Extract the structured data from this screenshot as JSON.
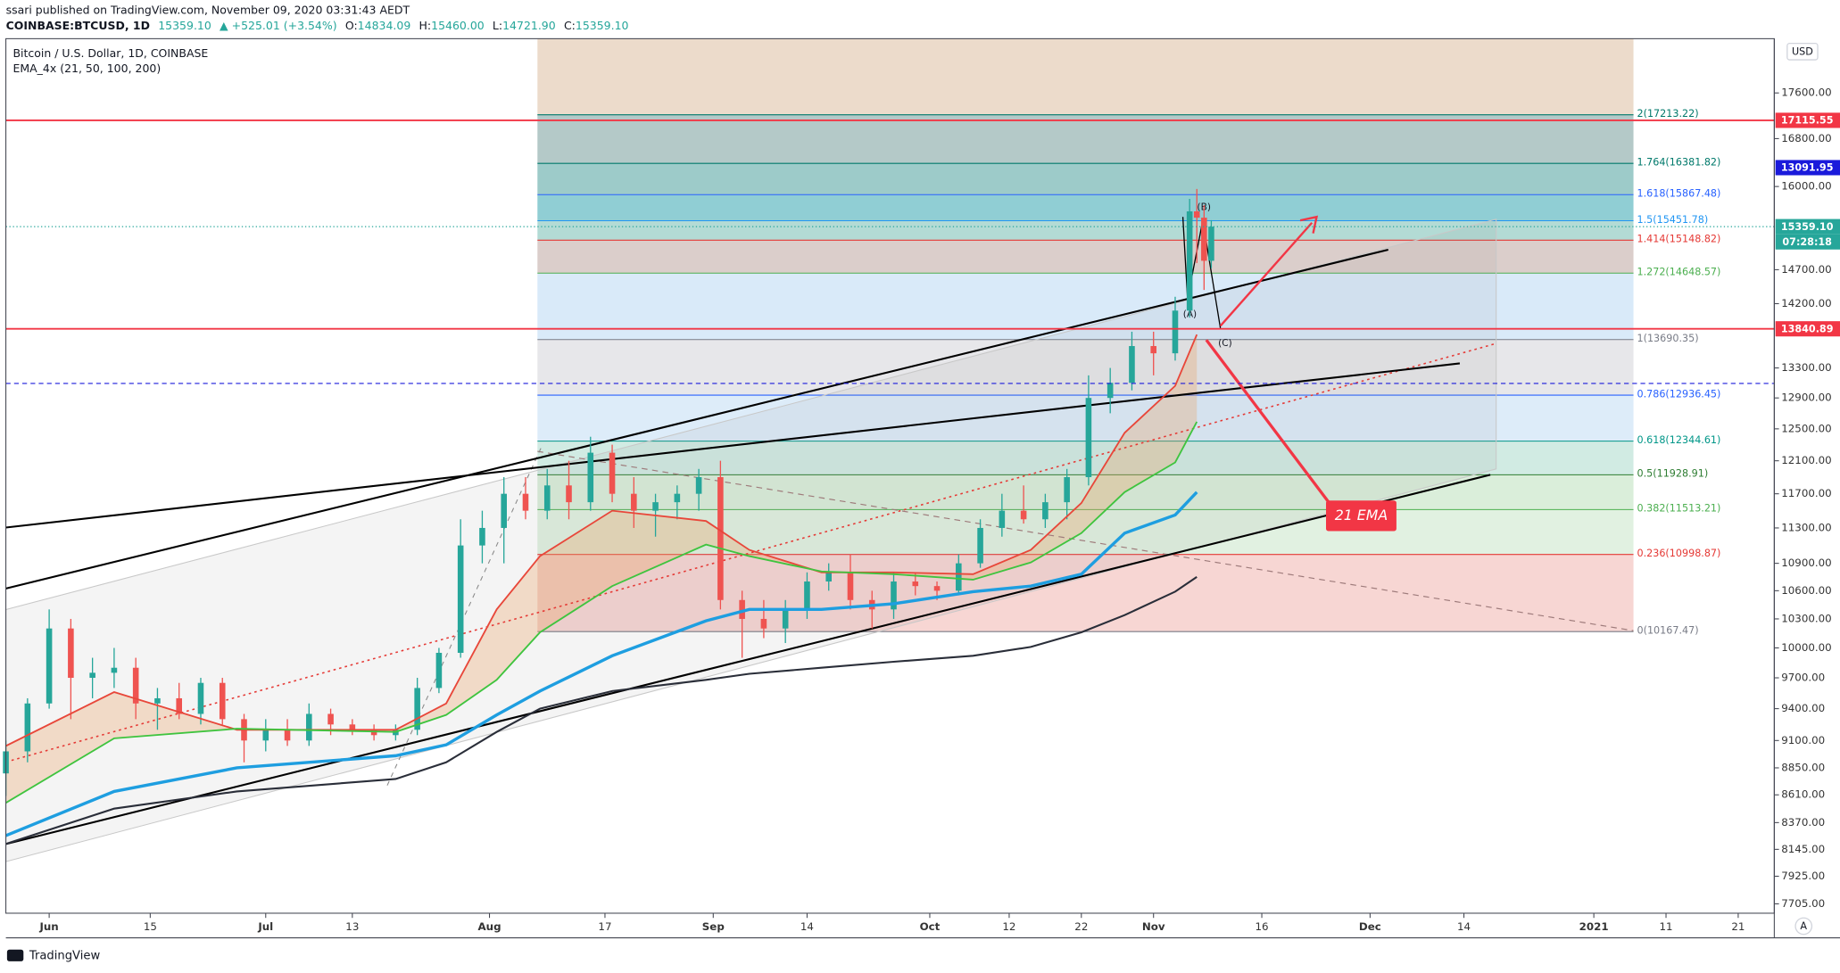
{
  "header": {
    "published": "ssari published on TradingView.com, November 09, 2020 03:31:43 AEDT",
    "symbol": "COINBASE:BTCUSD, 1D",
    "price": "15359.10",
    "change": "▲ +525.01 (+3.54%)",
    "ohlc": [
      {
        "key": "O:",
        "value": "14834.09"
      },
      {
        "key": "H:",
        "value": "15460.00"
      },
      {
        "key": "L:",
        "value": "14721.90"
      },
      {
        "key": "C:",
        "value": "15359.10"
      }
    ]
  },
  "legend": {
    "title": "Bitcoin / U.S. Dollar, 1D, COINBASE",
    "indicator": "EMA_4x (21, 50, 100, 200)"
  },
  "buttons": {
    "currency": "USD",
    "auto": "A"
  },
  "footer": "TradingView",
  "chart_data": {
    "type": "candlestick",
    "log_scale": true,
    "grid": false,
    "up_color": "#26a69a",
    "down_color": "#ef5350",
    "xlim": [
      -6,
      239
    ],
    "ylim": [
      7632,
      18600
    ],
    "xticks": [
      {
        "value": 0,
        "label": "Jun"
      },
      {
        "value": 14,
        "label": "15"
      },
      {
        "value": 30,
        "label": "Jul"
      },
      {
        "value": 42,
        "label": "13"
      },
      {
        "value": 61,
        "label": "Aug"
      },
      {
        "value": 77,
        "label": "17"
      },
      {
        "value": 92,
        "label": "Sep"
      },
      {
        "value": 105,
        "label": "14"
      },
      {
        "value": 122,
        "label": "Oct"
      },
      {
        "value": 133,
        "label": "12"
      },
      {
        "value": 143,
        "label": "22"
      },
      {
        "value": 153,
        "label": "Nov"
      },
      {
        "value": 168,
        "label": "16"
      },
      {
        "value": 183,
        "label": "Dec"
      },
      {
        "value": 196,
        "label": "14"
      },
      {
        "value": 214,
        "label": "2021"
      },
      {
        "value": 224,
        "label": "11"
      },
      {
        "value": 234,
        "label": "21"
      }
    ],
    "yticks": [
      {
        "value": 7705,
        "label": "7705.00"
      },
      {
        "value": 7925,
        "label": "7925.00"
      },
      {
        "value": 8145,
        "label": "8145.00"
      },
      {
        "value": 8370,
        "label": "8370.00"
      },
      {
        "value": 8610,
        "label": "8610.00"
      },
      {
        "value": 8850,
        "label": "8850.00"
      },
      {
        "value": 9100,
        "label": "9100.00"
      },
      {
        "value": 9400,
        "label": "9400.00"
      },
      {
        "value": 9700,
        "label": "9700.00"
      },
      {
        "value": 10000,
        "label": "10000.00"
      },
      {
        "value": 10300,
        "label": "10300.00"
      },
      {
        "value": 10600,
        "label": "10600.00"
      },
      {
        "value": 10900,
        "label": "10900.00"
      },
      {
        "value": 11300,
        "label": "11300.00"
      },
      {
        "value": 11700,
        "label": "11700.00"
      },
      {
        "value": 12100,
        "label": "12100.00"
      },
      {
        "value": 12500,
        "label": "12500.00"
      },
      {
        "value": 12900,
        "label": "12900.00"
      },
      {
        "value": 13300,
        "label": "13300.00"
      },
      {
        "value": 14200,
        "label": "14200.00"
      },
      {
        "value": 14700,
        "label": "14700.00"
      },
      {
        "value": 16000,
        "label": "16000.00"
      },
      {
        "value": 16800,
        "label": "16800.00"
      },
      {
        "value": 17600,
        "label": "17600.00"
      }
    ],
    "candles": {
      "x": [
        -6,
        -3,
        0,
        3,
        6,
        9,
        12,
        15,
        18,
        21,
        24,
        27,
        30,
        33,
        36,
        39,
        42,
        45,
        48,
        51,
        54,
        57,
        60,
        63,
        66,
        69,
        72,
        75,
        78,
        81,
        84,
        87,
        90,
        93,
        96,
        99,
        102,
        105,
        108,
        111,
        114,
        117,
        120,
        123,
        126,
        129,
        132,
        135,
        138,
        141,
        144,
        147,
        150,
        153,
        156,
        158,
        159,
        160,
        161
      ],
      "open": [
        8800,
        9000,
        9450,
        10200,
        9700,
        9750,
        9800,
        9450,
        9500,
        9350,
        9650,
        9300,
        9100,
        9200,
        9100,
        9350,
        9250,
        9200,
        9150,
        9200,
        9600,
        9950,
        11100,
        11300,
        11700,
        11500,
        11800,
        11600,
        12200,
        11700,
        11500,
        11600,
        11700,
        11900,
        10500,
        10300,
        10200,
        10400,
        10700,
        10800,
        10500,
        10400,
        10700,
        10650,
        10600,
        10900,
        11300,
        11500,
        11400,
        11600,
        11900,
        12900,
        13100,
        13600,
        13500,
        14100,
        15600,
        15500,
        14834.09
      ],
      "high": [
        9100,
        9500,
        10400,
        10300,
        9900,
        10000,
        9900,
        9600,
        9650,
        9700,
        9700,
        9350,
        9300,
        9300,
        9450,
        9400,
        9300,
        9250,
        9250,
        9700,
        10000,
        11400,
        11500,
        11900,
        11900,
        12000,
        12100,
        12400,
        12300,
        11900,
        11700,
        11800,
        12000,
        12100,
        10600,
        10500,
        10500,
        10800,
        10900,
        11000,
        10600,
        10800,
        10800,
        10700,
        11000,
        11400,
        11700,
        11800,
        11700,
        12000,
        13200,
        13300,
        13800,
        13800,
        14300,
        15800,
        15960,
        15700,
        15460
      ],
      "low": [
        8600,
        8900,
        9400,
        9300,
        9500,
        9600,
        9300,
        9200,
        9300,
        9250,
        9250,
        8900,
        9000,
        9050,
        9050,
        9150,
        9150,
        9100,
        9100,
        9150,
        9550,
        9900,
        10900,
        10900,
        11400,
        11400,
        11400,
        11500,
        11600,
        11300,
        11200,
        11400,
        11500,
        10400,
        9900,
        10100,
        10050,
        10300,
        10600,
        10400,
        10200,
        10300,
        10550,
        10500,
        10550,
        10850,
        11200,
        11350,
        11300,
        11400,
        11800,
        12700,
        13000,
        13200,
        13400,
        14000,
        14800,
        14400,
        14721.9
      ],
      "close": [
        9000,
        9450,
        10200,
        9700,
        9750,
        9800,
        9450,
        9500,
        9350,
        9650,
        9300,
        9100,
        9200,
        9100,
        9350,
        9250,
        9200,
        9150,
        9200,
        9600,
        9950,
        11100,
        11300,
        11700,
        11500,
        11800,
        11600,
        12200,
        11700,
        11500,
        11600,
        11700,
        11900,
        10500,
        10300,
        10200,
        10400,
        10700,
        10800,
        10500,
        10400,
        10700,
        10650,
        10600,
        10900,
        11300,
        11500,
        11400,
        11600,
        11900,
        12900,
        13100,
        13600,
        13500,
        14100,
        15600,
        15500,
        14834.09,
        15359.1
      ]
    },
    "ema": [
      {
        "color": "#e8473a",
        "width": 1.4,
        "x": [
          -6,
          9,
          26,
          48,
          55,
          62,
          68,
          78,
          91,
          97,
          107,
          117,
          128,
          136,
          143,
          149,
          156,
          159
        ],
        "values": [
          9050,
          9560,
          9200,
          9200,
          9450,
          10400,
          10980,
          11500,
          11380,
          11050,
          10800,
          10800,
          10780,
          11050,
          11590,
          12450,
          13060,
          13760
        ]
      },
      {
        "color": "#3fc43f",
        "width": 1.4,
        "x": [
          -6,
          9,
          26,
          48,
          55,
          62,
          68,
          78,
          91,
          97,
          107,
          117,
          128,
          136,
          143,
          149,
          156,
          159
        ],
        "values": [
          8540,
          9120,
          9210,
          9180,
          9340,
          9680,
          10160,
          10650,
          11110,
          10980,
          10810,
          10780,
          10720,
          10910,
          11240,
          11720,
          12080,
          12590
        ]
      },
      {
        "color": "#1e9ee0",
        "width": 2.6,
        "x": [
          -6,
          9,
          26,
          48,
          55,
          62,
          68,
          78,
          91,
          97,
          107,
          117,
          128,
          136,
          143,
          149,
          156,
          159
        ],
        "values": [
          8260,
          8640,
          8850,
          8960,
          9060,
          9340,
          9570,
          9920,
          10280,
          10400,
          10400,
          10460,
          10590,
          10650,
          10780,
          11240,
          11450,
          11720
        ]
      },
      {
        "color": "#2a2e39",
        "width": 1.6,
        "x": [
          -6,
          9,
          26,
          48,
          55,
          62,
          68,
          78,
          91,
          97,
          107,
          117,
          128,
          136,
          143,
          149,
          156,
          159
        ],
        "values": [
          8190,
          8490,
          8640,
          8750,
          8900,
          9180,
          9400,
          9570,
          9680,
          9740,
          9800,
          9860,
          9920,
          10010,
          10160,
          10340,
          10590,
          10750
        ]
      }
    ],
    "fib": {
      "top_fill": "#e9d5c2",
      "levels": [
        {
          "label": "0(10167.47)",
          "value": 10167.47,
          "color": "#787b86",
          "fill": "#f6cfcb"
        },
        {
          "label": "0.236(10998.87)",
          "value": 10998.87,
          "color": "#e53935",
          "fill": "#dcefdc"
        },
        {
          "label": "0.382(11513.21)",
          "value": 11513.21,
          "color": "#4caf50",
          "fill": "#d3ebd4"
        },
        {
          "label": "0.5(11928.91)",
          "value": 11928.91,
          "color": "#2e7d32",
          "fill": "#c9e8de"
        },
        {
          "label": "0.618(12344.61)",
          "value": 12344.61,
          "color": "#009688",
          "fill": "#d7e9f8"
        },
        {
          "label": "0.786(12936.45)",
          "value": 12936.45,
          "color": "#2962ff",
          "fill": "#e3e3e6"
        },
        {
          "label": "1(13690.35)",
          "value": 13690.35,
          "color": "#787b86",
          "fill": "#d2e6f8"
        },
        {
          "label": "1.272(14648.57)",
          "value": 14648.57,
          "color": "#4caf50",
          "fill": "#d5c5c2"
        },
        {
          "label": "1.414(15148.82)",
          "value": 15148.82,
          "color": "#e53935",
          "fill": "#a6d5ce"
        },
        {
          "label": "1.5(15451.78)",
          "value": 15451.78,
          "color": "#2196f3",
          "fill": "#7cc5cd"
        },
        {
          "label": "1.618(15867.48)",
          "value": 15867.48,
          "color": "#2962ff",
          "fill": "#8cc2c0"
        },
        {
          "label": "1.764(16381.82)",
          "value": 16381.82,
          "color": "#00796b",
          "fill": "#a7bfbe"
        },
        {
          "label": "2(17213.22)",
          "value": 17213.22,
          "color": "#00796b",
          "fill": "#e9d5c2"
        }
      ]
    },
    "price_lines": [
      {
        "value": 17115.55,
        "label": "17115.55",
        "color": "#f23645",
        "style": "solid"
      },
      {
        "value": 13840.89,
        "label": "13840.89",
        "color": "#f23645",
        "style": "solid"
      },
      {
        "value": 13091.95,
        "label": "13091.95",
        "color": "#1a1adb",
        "style": "dashed"
      },
      {
        "value": 15359.1,
        "label": "15359.10",
        "color": "#26a69a",
        "style": "dotted"
      }
    ],
    "countdown": "07:28:18",
    "annotations": {
      "a": "(A)",
      "b": "(B)",
      "c": "(C)",
      "ema_callout": "21 EMA"
    }
  }
}
